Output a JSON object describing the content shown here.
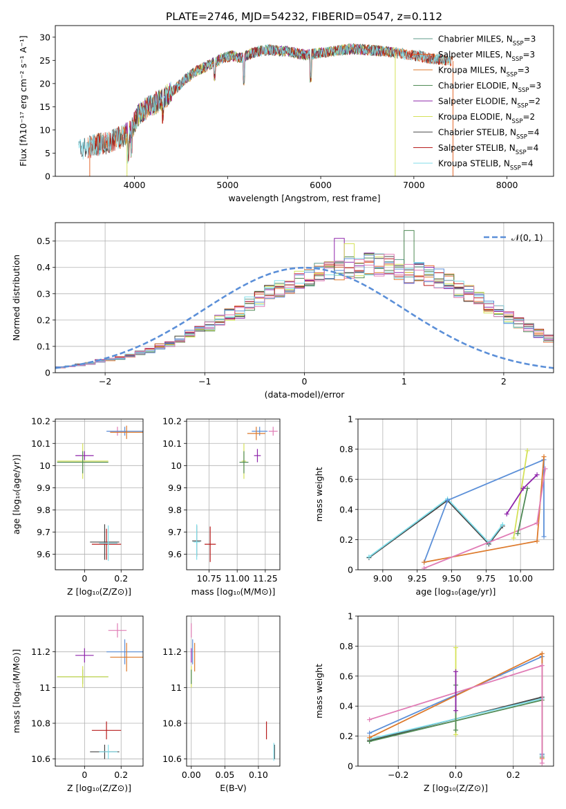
{
  "figure_title": "PLATE=2746, MJD=54232, FIBERID=0547, z=0.112",
  "chart_data": [
    {
      "id": "spectrum",
      "type": "line",
      "xlabel": "wavelength [Angstrom, rest frame]",
      "ylabel": "Flux [fλ10⁻¹⁷ erg cm⁻² s⁻¹ A⁻¹]",
      "xlim": [
        3150,
        8500
      ],
      "ylim": [
        0,
        32.5
      ],
      "xticks": [
        4000,
        5000,
        6000,
        7000,
        8000
      ],
      "yticks": [
        0,
        5,
        10,
        15,
        20,
        25,
        30
      ],
      "grid": false,
      "legend_position": "top-right",
      "x": [
        3450,
        3550,
        3650,
        3750,
        3850,
        3950,
        4050,
        4150,
        4250,
        4350,
        4450,
        4550,
        4650,
        4750,
        4850,
        4950,
        5050,
        5150,
        5250,
        5350,
        5450,
        5550,
        5650,
        5750,
        5850,
        5950,
        6050,
        6150,
        6250,
        6350,
        6450,
        6550,
        6650,
        6750,
        6850,
        6950,
        7050,
        7150,
        7250,
        7350,
        7450
      ],
      "continuum": [
        6,
        6.5,
        7,
        7.5,
        8.5,
        9.5,
        13.5,
        15,
        16,
        17.5,
        19,
        21,
        22.5,
        23.5,
        24.5,
        25.5,
        26,
        25.5,
        26.5,
        27,
        27.3,
        27,
        27,
        26.5,
        26.2,
        26.5,
        26.7,
        27,
        27.3,
        27.5,
        27.3,
        27.2,
        27,
        26.8,
        26.5,
        26.2,
        26,
        25.5,
        25.2,
        25,
        24.8
      ],
      "absorption_features": [
        {
          "x": 3934,
          "depth": 4
        },
        {
          "x": 3968,
          "depth": 4
        },
        {
          "x": 4305,
          "depth": 3
        },
        {
          "x": 4861,
          "depth": 3
        },
        {
          "x": 5175,
          "depth": 5
        },
        {
          "x": 5893,
          "depth": 5
        }
      ],
      "series": [
        {
          "name": "Chabrier MILES, N_SSP=3",
          "color": "#5c9a8a",
          "xmin": 3550,
          "xmax": 7400
        },
        {
          "name": "Salpeter MILES, N_SSP=3",
          "color": "#e3662c",
          "xmin": 3500,
          "xmax": 7420
        },
        {
          "name": "Kroupa MILES, N_SSP=3",
          "color": "#dd7a2c",
          "xmin": 3550,
          "xmax": 7400
        },
        {
          "name": "Chabrier ELODIE, N_SSP=3",
          "color": "#4f8a55",
          "xmin": 3900,
          "xmax": 6800
        },
        {
          "name": "Salpeter ELODIE, N_SSP=2",
          "color": "#8e24aa",
          "xmin": 3900,
          "xmax": 6800
        },
        {
          "name": "Kroupa ELODIE, N_SSP=2",
          "color": "#d4e157",
          "xmin": 3920,
          "xmax": 6800
        },
        {
          "name": "Chabrier STELIB, N_SSP=4",
          "color": "#444444",
          "xmin": 3400,
          "xmax": 7400
        },
        {
          "name": "Salpeter STELIB, N_SSP=4",
          "color": "#b71c1c",
          "xmin": 3500,
          "xmax": 7400
        },
        {
          "name": "Kroupa STELIB, N_SSP=4",
          "color": "#80deea",
          "xmin": 3400,
          "xmax": 7400
        }
      ],
      "drop_lines": [
        {
          "x": 3520,
          "color": "#e3662c"
        },
        {
          "x": 3920,
          "color": "#d4e157"
        },
        {
          "x": 6800,
          "color": "#d4e157"
        },
        {
          "x": 7420,
          "color": "#e3662c"
        }
      ]
    },
    {
      "id": "residuals",
      "type": "histogram",
      "xlabel": "(data-model)/error",
      "ylabel": "Normed distribution",
      "xlim": [
        -2.5,
        2.5
      ],
      "ylim": [
        0,
        0.57
      ],
      "xticks": [
        -2,
        -1,
        0,
        1,
        2
      ],
      "xtick_labels": [
        "−2",
        "−1",
        "0",
        "1",
        "2"
      ],
      "yticks": [
        0.0,
        0.1,
        0.2,
        0.3,
        0.4,
        0.5
      ],
      "grid": true,
      "legend_position": "top-right",
      "reference_curve": {
        "name": "𝒩(0, 1)",
        "color": "#5b8fd8"
      },
      "bin_edges_start": -2.5,
      "bin_width": 0.1,
      "base_values": [
        0.02,
        0.025,
        0.03,
        0.035,
        0.045,
        0.05,
        0.055,
        0.065,
        0.075,
        0.085,
        0.1,
        0.11,
        0.13,
        0.15,
        0.16,
        0.175,
        0.2,
        0.22,
        0.23,
        0.26,
        0.28,
        0.3,
        0.32,
        0.33,
        0.36,
        0.37,
        0.38,
        0.39,
        0.39,
        0.4,
        0.4,
        0.41,
        0.41,
        0.4,
        0.39,
        0.38,
        0.38,
        0.37,
        0.36,
        0.34,
        0.32,
        0.3,
        0.28,
        0.25,
        0.23,
        0.21,
        0.19,
        0.17,
        0.15,
        0.13,
        0.12,
        0.1,
        0.085,
        0.07,
        0.06,
        0.05,
        0.04,
        0.035,
        0.03,
        0.025
      ],
      "series_colors": [
        "#5c9a8a",
        "#e3662c",
        "#dd7a2c",
        "#4f8a55",
        "#8e24aa",
        "#d4e157",
        "#444444",
        "#b71c1c",
        "#80deea",
        "#5b8fd8",
        "#e07bb5"
      ],
      "spikes": [
        {
          "bin": 28,
          "value": 0.51,
          "color": "#8e24aa"
        },
        {
          "bin": 29,
          "value": 0.49,
          "color": "#d4e157"
        },
        {
          "bin": 33,
          "value": 0.45,
          "color": "#e07bb5"
        },
        {
          "bin": 35,
          "value": 0.54,
          "color": "#4f8a55"
        }
      ]
    },
    {
      "id": "age_vs_Z",
      "type": "scatter",
      "xlabel": "Z [log₁₀(Z/Z⊙)]",
      "ylabel": "age  [log₁₀(age/yr)]",
      "xlim": [
        -0.16,
        0.32
      ],
      "ylim": [
        9.53,
        10.21
      ],
      "xticks": [
        0.0,
        0.2
      ],
      "yticks": [
        9.6,
        9.7,
        9.8,
        9.9,
        10.0,
        10.1,
        10.2
      ],
      "grid": true,
      "points": [
        {
          "x": 0.18,
          "y": 10.155,
          "xerr": 0.05,
          "yerr": 0.02,
          "color": "#e07bb5"
        },
        {
          "x": 0.22,
          "y": 10.155,
          "xerr": 0.1,
          "yerr": 0.02,
          "color": "#5b8fd8"
        },
        {
          "x": 0.23,
          "y": 10.15,
          "xerr": 0.09,
          "yerr": 0.03,
          "color": "#dd7a2c"
        },
        {
          "x": 0.0,
          "y": 10.045,
          "xerr": 0.05,
          "yerr": 0.02,
          "color": "#8e24aa"
        },
        {
          "x": -0.01,
          "y": 10.02,
          "xerr": 0.14,
          "yerr": 0.08,
          "color": "#d4e157"
        },
        {
          "x": -0.01,
          "y": 10.015,
          "xerr": 0.14,
          "yerr": 0.05,
          "color": "#4f8a55"
        },
        {
          "x": 0.11,
          "y": 9.655,
          "xerr": 0.08,
          "yerr": 0.08,
          "color": "#444444"
        },
        {
          "x": 0.12,
          "y": 9.645,
          "xerr": 0.08,
          "yerr": 0.07,
          "color": "#b71c1c"
        },
        {
          "x": 0.13,
          "y": 9.65,
          "xerr": 0.05,
          "yerr": 0.08,
          "color": "#80deea"
        }
      ]
    },
    {
      "id": "age_vs_mass",
      "type": "scatter",
      "xlabel": "mass [log₁₀(M/M⊙)]",
      "ylabel": "",
      "xlim": [
        10.55,
        11.38
      ],
      "ylim": [
        9.53,
        10.21
      ],
      "xticks": [
        10.75,
        11.0,
        11.25
      ],
      "xtick_labels": [
        "10.75",
        "11.00",
        "11.25"
      ],
      "yticks": [
        9.6,
        9.7,
        9.8,
        9.9,
        10.0,
        10.1,
        10.2
      ],
      "grid": true,
      "points": [
        {
          "x": 11.32,
          "y": 10.155,
          "xerr": 0.04,
          "yerr": 0.02,
          "color": "#e07bb5"
        },
        {
          "x": 11.2,
          "y": 10.155,
          "xerr": 0.07,
          "yerr": 0.02,
          "color": "#5b8fd8"
        },
        {
          "x": 11.17,
          "y": 10.145,
          "xerr": 0.08,
          "yerr": 0.03,
          "color": "#dd7a2c"
        },
        {
          "x": 11.18,
          "y": 10.045,
          "xerr": 0.03,
          "yerr": 0.03,
          "color": "#8e24aa"
        },
        {
          "x": 11.06,
          "y": 10.02,
          "xerr": 0.02,
          "yerr": 0.08,
          "color": "#d4e157"
        },
        {
          "x": 11.06,
          "y": 10.015,
          "xerr": 0.04,
          "yerr": 0.05,
          "color": "#4f8a55"
        },
        {
          "x": 10.64,
          "y": 9.66,
          "xerr": 0.04,
          "yerr": 0.07,
          "color": "#444444"
        },
        {
          "x": 10.76,
          "y": 9.645,
          "xerr": 0.05,
          "yerr": 0.08,
          "color": "#b71c1c"
        },
        {
          "x": 10.64,
          "y": 9.655,
          "xerr": 0.03,
          "yerr": 0.08,
          "color": "#80deea"
        }
      ]
    },
    {
      "id": "weight_vs_age",
      "type": "line",
      "xlabel": "age  [log₁₀(age/yr)]",
      "ylabel": "mass weight",
      "xlim": [
        8.82,
        10.24
      ],
      "ylim": [
        0,
        1
      ],
      "xticks": [
        9.0,
        9.25,
        9.5,
        9.75,
        10.0
      ],
      "xtick_labels": [
        "9.00",
        "9.25",
        "9.50",
        "9.75",
        "10.00"
      ],
      "yticks": [
        0.0,
        0.2,
        0.4,
        0.6,
        0.8,
        1.0
      ],
      "grid": true,
      "series": [
        {
          "color": "#444444",
          "x": [
            8.9,
            9.47,
            9.77,
            9.87
          ],
          "y": [
            0.08,
            0.46,
            0.17,
            0.29
          ]
        },
        {
          "color": "#80deea",
          "x": [
            8.9,
            9.47,
            9.77,
            9.87
          ],
          "y": [
            0.085,
            0.47,
            0.18,
            0.3
          ]
        },
        {
          "color": "#5b8fd8",
          "x": [
            9.3,
            9.47,
            10.17,
            10.17
          ],
          "y": [
            0.05,
            0.46,
            0.73,
            0.22
          ]
        },
        {
          "color": "#dd7a2c",
          "x": [
            9.3,
            10.12,
            10.17
          ],
          "y": [
            0.05,
            0.19,
            0.75
          ]
        },
        {
          "color": "#e07bb5",
          "x": [
            9.3,
            10.12,
            10.18
          ],
          "y": [
            0.01,
            0.31,
            0.67
          ]
        },
        {
          "color": "#d4e157",
          "x": [
            9.95,
            10.05
          ],
          "y": [
            0.21,
            0.79
          ]
        },
        {
          "color": "#4f8a55",
          "x": [
            9.98,
            10.05
          ],
          "y": [
            0.24,
            0.54
          ]
        },
        {
          "color": "#8e24aa",
          "x": [
            9.9,
            10.02,
            10.12
          ],
          "y": [
            0.37,
            0.54,
            0.63
          ]
        }
      ]
    },
    {
      "id": "mass_vs_Z",
      "type": "scatter",
      "xlabel": "Z [log₁₀(Z/Z⊙)]",
      "ylabel": "mass [log₁₀(M/M⊙)]",
      "xlim": [
        -0.16,
        0.32
      ],
      "ylim": [
        10.56,
        11.4
      ],
      "xticks": [
        0.0,
        0.2
      ],
      "yticks": [
        10.6,
        10.8,
        11.0,
        11.2
      ],
      "grid": true,
      "points": [
        {
          "x": 0.18,
          "y": 11.32,
          "xerr": 0.05,
          "yerr": 0.04,
          "color": "#e07bb5"
        },
        {
          "x": 0.0,
          "y": 11.18,
          "xerr": 0.05,
          "yerr": 0.04,
          "color": "#8e24aa"
        },
        {
          "x": 0.22,
          "y": 11.2,
          "xerr": 0.1,
          "yerr": 0.07,
          "color": "#5b8fd8"
        },
        {
          "x": 0.23,
          "y": 11.17,
          "xerr": 0.09,
          "yerr": 0.08,
          "color": "#dd7a2c"
        },
        {
          "x": -0.01,
          "y": 11.06,
          "xerr": 0.14,
          "yerr": 0.04,
          "color": "#4f8a55"
        },
        {
          "x": -0.01,
          "y": 11.06,
          "xerr": 0.14,
          "yerr": 0.06,
          "color": "#d4e157"
        },
        {
          "x": 0.12,
          "y": 10.76,
          "xerr": 0.08,
          "yerr": 0.05,
          "color": "#b71c1c"
        },
        {
          "x": 0.11,
          "y": 10.64,
          "xerr": 0.08,
          "yerr": 0.04,
          "color": "#444444"
        },
        {
          "x": 0.13,
          "y": 10.64,
          "xerr": 0.05,
          "yerr": 0.04,
          "color": "#80deea"
        }
      ]
    },
    {
      "id": "mass_vs_ebv",
      "type": "scatter",
      "xlabel": "E(B-V)",
      "ylabel": "",
      "xlim": [
        -0.007,
        0.132
      ],
      "ylim": [
        10.56,
        11.4
      ],
      "xticks": [
        0.0,
        0.05,
        0.1
      ],
      "xtick_labels": [
        "0.00",
        "0.05",
        "0.10"
      ],
      "yticks": [
        10.6,
        10.8,
        11.0,
        11.2
      ],
      "grid": true,
      "points": [
        {
          "x": 0.0,
          "y": 11.32,
          "xerr": 0,
          "yerr": 0.04,
          "color": "#e07bb5"
        },
        {
          "x": 0.002,
          "y": 11.2,
          "xerr": 0,
          "yerr": 0.07,
          "color": "#5b8fd8"
        },
        {
          "x": 0.005,
          "y": 11.17,
          "xerr": 0,
          "yerr": 0.08,
          "color": "#dd7a2c"
        },
        {
          "x": 0.0,
          "y": 11.18,
          "xerr": 0,
          "yerr": 0.04,
          "color": "#8e24aa"
        },
        {
          "x": 0.0,
          "y": 11.06,
          "xerr": 0,
          "yerr": 0.06,
          "color": "#d4e157"
        },
        {
          "x": 0.0,
          "y": 11.06,
          "xerr": 0,
          "yerr": 0.04,
          "color": "#4f8a55"
        },
        {
          "x": 0.112,
          "y": 10.76,
          "xerr": 0,
          "yerr": 0.05,
          "color": "#b71c1c"
        },
        {
          "x": 0.124,
          "y": 10.64,
          "xerr": 0,
          "yerr": 0.04,
          "color": "#444444"
        },
        {
          "x": 0.123,
          "y": 10.64,
          "xerr": 0,
          "yerr": 0.05,
          "color": "#80deea"
        }
      ]
    },
    {
      "id": "weight_vs_Z",
      "type": "line",
      "xlabel": "Z [log₁₀(Z/Z⊙)]",
      "ylabel": "mass weight",
      "xlim": [
        -0.34,
        0.34
      ],
      "ylim": [
        0,
        1
      ],
      "xticks": [
        -0.2,
        0.0,
        0.2
      ],
      "xtick_labels": [
        "−0.2",
        "0.0",
        "0.2"
      ],
      "yticks": [
        0.0,
        0.2,
        0.4,
        0.6,
        0.8,
        1.0
      ],
      "grid": true,
      "series": [
        {
          "color": "#444444",
          "x": [
            -0.3,
            0.3,
            0.3
          ],
          "y": [
            0.17,
            0.46,
            0.08
          ]
        },
        {
          "color": "#80deea",
          "x": [
            -0.3,
            0.3,
            0.3
          ],
          "y": [
            0.18,
            0.45,
            0.07
          ]
        },
        {
          "color": "#4f8a55",
          "x": [
            -0.3,
            0.3,
            0.3
          ],
          "y": [
            0.165,
            0.44,
            0.06
          ]
        },
        {
          "color": "#5b8fd8",
          "x": [
            -0.3,
            0.3,
            0.3
          ],
          "y": [
            0.22,
            0.73,
            0.08
          ]
        },
        {
          "color": "#dd7a2c",
          "x": [
            -0.3,
            0.3,
            0.3
          ],
          "y": [
            0.19,
            0.75,
            0.05
          ]
        },
        {
          "color": "#e07bb5",
          "x": [
            -0.3,
            0.3,
            0.3
          ],
          "y": [
            0.31,
            0.67,
            0.02
          ]
        },
        {
          "color": "#d4e157",
          "x": [
            0.0,
            0.0
          ],
          "y": [
            0.21,
            0.79
          ]
        },
        {
          "color": "#4f8a55",
          "x": [
            0.0,
            0.0
          ],
          "y": [
            0.24,
            0.54
          ]
        },
        {
          "color": "#8e24aa",
          "x": [
            0.0,
            0.0
          ],
          "y": [
            0.37,
            0.63
          ]
        }
      ]
    }
  ]
}
